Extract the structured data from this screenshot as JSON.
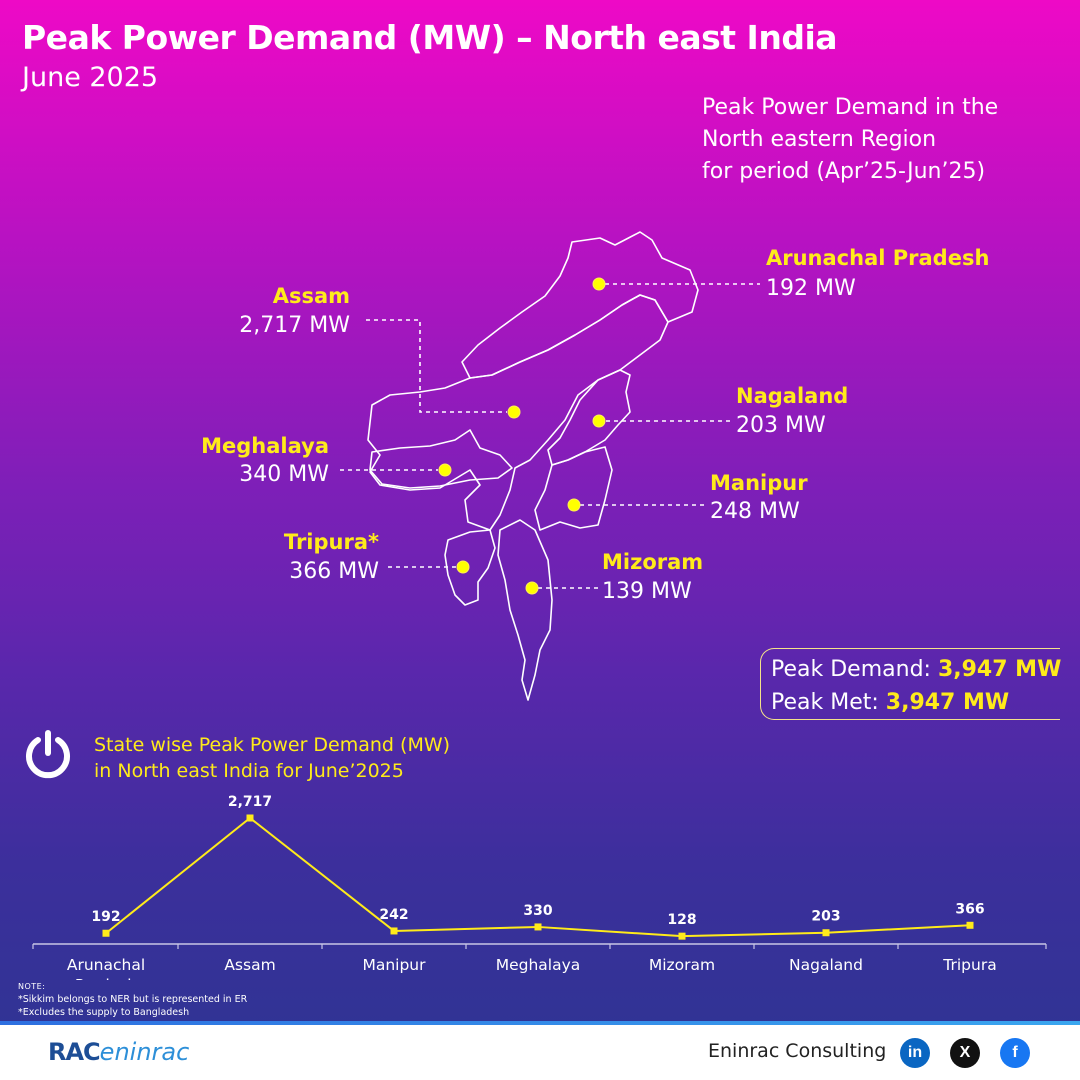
{
  "header": {
    "title": "Peak Power Demand (MW) – North east India",
    "subtitle": "June 2025",
    "period_line1": "Peak Power Demand in the",
    "period_line2": "North eastern Region",
    "period_line3": "for period (Apr’25-Jun’25)"
  },
  "map": {
    "states": [
      {
        "name": "Arunachal Pradesh",
        "value": "192 MW"
      },
      {
        "name": "Assam",
        "value": "2,717 MW"
      },
      {
        "name": "Nagaland",
        "value": "203 MW"
      },
      {
        "name": "Meghalaya",
        "value": "340 MW"
      },
      {
        "name": "Manipur",
        "value": "248 MW"
      },
      {
        "name": "Tripura*",
        "value": "366 MW"
      },
      {
        "name": "Mizoram",
        "value": "139 MW"
      }
    ],
    "marker_color": "#ffff00"
  },
  "summary": {
    "demand_label": "Peak Demand: ",
    "demand_value": "3,947 MW",
    "met_label": "Peak Met: ",
    "met_value": "3,947 MW"
  },
  "chart_title_line1": "State wise Peak Power Demand (MW)",
  "chart_title_line2": "in North east India for June’2025",
  "chart_data": {
    "type": "line",
    "categories": [
      "Arunachal Pradesh",
      "Assam",
      "Manipur",
      "Meghalaya",
      "Mizoram",
      "Nagaland",
      "Tripura"
    ],
    "category_lines": [
      [
        "Arunachal",
        "Pradesh"
      ],
      [
        "Assam"
      ],
      [
        "Manipur"
      ],
      [
        "Meghalaya"
      ],
      [
        "Mizoram"
      ],
      [
        "Nagaland"
      ],
      [
        "Tripura"
      ]
    ],
    "values": [
      192,
      2717,
      242,
      330,
      128,
      203,
      366
    ],
    "data_labels": [
      "192",
      "2,717",
      "242",
      "330",
      "128",
      "203",
      "366"
    ],
    "ylim": [
      0,
      2717
    ],
    "line_color": "#ffeb1a",
    "grid": false
  },
  "notes": {
    "label": "NOTE:",
    "line1": "*Sikkim belongs to NER but is represented in ER",
    "line2": "*Excludes the supply to Bangladesh"
  },
  "footer": {
    "brand_a": "RAC",
    "brand_b": "eninrac",
    "company": "Eninrac Consulting",
    "linkedin": "in",
    "x": "X",
    "facebook": "f",
    "linkedin_color": "#0a66c2",
    "x_color": "#111111",
    "facebook_color": "#1877f2"
  }
}
